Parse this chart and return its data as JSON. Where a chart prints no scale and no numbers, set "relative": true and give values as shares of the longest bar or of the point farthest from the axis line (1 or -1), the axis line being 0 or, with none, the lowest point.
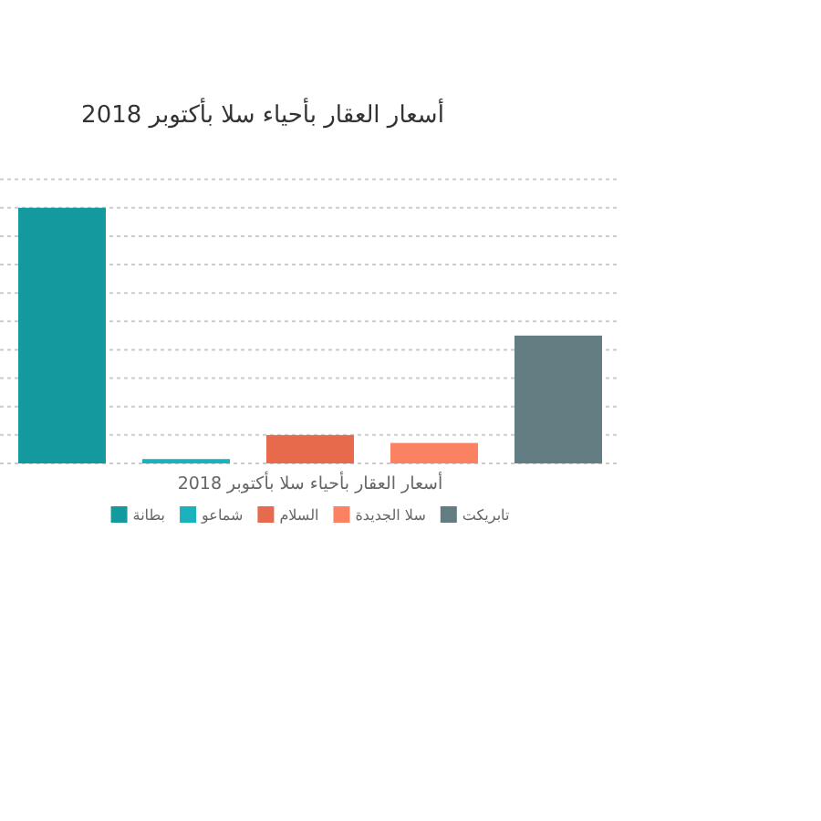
{
  "chart_data": {
    "type": "bar",
    "title": "أسعار العقار بأحياء سلا بأكتوبر 2018",
    "xlabel": "أسعار العقار بأحياء سلا بأكتوبر 2018",
    "categories": [
      null,
      null,
      null,
      null,
      null
    ],
    "series": [
      {
        "name": "بطانة",
        "color": "#13999e",
        "values": [
          1,
          null,
          null,
          null,
          null
        ]
      },
      {
        "name": "شماعو",
        "color": "#1ab3bd",
        "values": [
          null,
          0.017,
          null,
          null,
          null
        ]
      },
      {
        "name": "السلام",
        "color": "#e76a4c",
        "values": [
          null,
          null,
          0.111,
          null,
          null
        ]
      },
      {
        "name": "سلا الجديدة",
        "color": "#fa8263",
        "values": [
          null,
          null,
          null,
          0.08,
          null
        ]
      },
      {
        "name": "تابريكت",
        "color": "#627e82",
        "values": [
          null,
          null,
          null,
          null,
          0.5
        ]
      }
    ],
    "stacked": true,
    "relative": true,
    "grid": "y",
    "legend": "bottom"
  }
}
